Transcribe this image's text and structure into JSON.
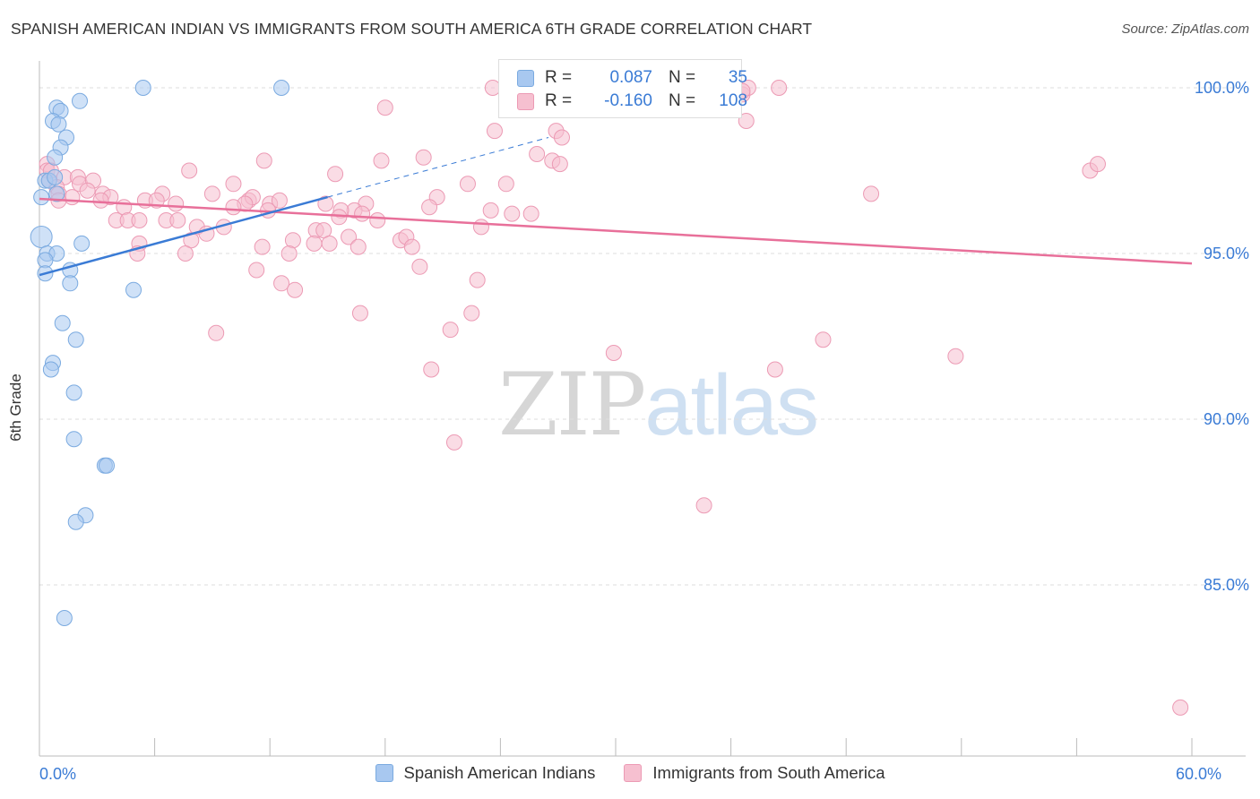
{
  "title": "SPANISH AMERICAN INDIAN VS IMMIGRANTS FROM SOUTH AMERICA 6TH GRADE CORRELATION CHART",
  "source": "Source: ZipAtlas.com",
  "watermark": {
    "zip": "ZIP",
    "atlas": "atlas"
  },
  "legend": {
    "blue": {
      "r_label": "R =",
      "r_value": "0.087",
      "n_label": "N =",
      "n_value": "35"
    },
    "pink": {
      "r_label": "R =",
      "r_value": "-0.160",
      "n_label": "N =",
      "n_value": "108"
    }
  },
  "colors": {
    "blue_fill": "#a8c8f0",
    "blue_stroke": "#7aaae0",
    "blue_line": "#3a7bd5",
    "pink_fill": "#f6c0d0",
    "pink_stroke": "#ec9ab4",
    "pink_line": "#e8709a",
    "tick_label": "#3a7bd5",
    "grid": "#dddddd"
  },
  "chart_data": {
    "type": "scatter",
    "xlabel": "",
    "ylabel": "6th Grade",
    "xlim": [
      0,
      60
    ],
    "ylim": [
      80.5,
      100.8
    ],
    "x_tick_labels": [
      {
        "value": 0,
        "label": "0.0%"
      },
      {
        "value": 60,
        "label": "60.0%"
      }
    ],
    "x_minor_ticks": [
      0,
      6,
      12,
      18,
      24,
      30,
      36,
      42,
      48,
      54,
      60
    ],
    "y_ticks": [
      {
        "value": 100,
        "label": "100.0%"
      },
      {
        "value": 95,
        "label": "95.0%"
      },
      {
        "value": 90,
        "label": "90.0%"
      },
      {
        "value": 85,
        "label": "85.0%"
      }
    ],
    "grid": true,
    "legend_position": "top-center",
    "series": [
      {
        "name": "Spanish American Indians",
        "color": "#a8c8f0",
        "trend": {
          "x": [
            0,
            15
          ],
          "y": [
            94.35,
            96.7
          ],
          "dashed_to": [
            26.5,
            98.5
          ]
        },
        "points": [
          [
            5.4,
            100.0
          ],
          [
            12.6,
            100.0
          ],
          [
            2.1,
            99.6
          ],
          [
            0.9,
            99.4
          ],
          [
            1.1,
            99.3
          ],
          [
            0.7,
            99.0
          ],
          [
            1.0,
            98.9
          ],
          [
            1.4,
            98.5
          ],
          [
            1.1,
            98.2
          ],
          [
            0.8,
            97.9
          ],
          [
            0.3,
            97.2
          ],
          [
            0.5,
            97.2
          ],
          [
            0.9,
            96.8
          ],
          [
            0.1,
            96.7
          ],
          [
            0.1,
            95.5
          ],
          [
            2.2,
            95.3
          ],
          [
            0.4,
            95.0
          ],
          [
            0.9,
            95.0
          ],
          [
            0.3,
            94.8
          ],
          [
            1.6,
            94.5
          ],
          [
            0.3,
            94.4
          ],
          [
            1.6,
            94.1
          ],
          [
            4.9,
            93.9
          ],
          [
            1.2,
            92.9
          ],
          [
            1.9,
            92.4
          ],
          [
            0.7,
            91.7
          ],
          [
            0.6,
            91.5
          ],
          [
            1.8,
            90.8
          ],
          [
            1.8,
            89.4
          ],
          [
            3.4,
            88.6
          ],
          [
            3.5,
            88.6
          ],
          [
            2.4,
            87.1
          ],
          [
            1.9,
            86.9
          ],
          [
            1.3,
            84.0
          ],
          [
            0.8,
            97.3
          ]
        ]
      },
      {
        "name": "Immigrants from South America",
        "color": "#f6c0d0",
        "trend": {
          "x": [
            0,
            60
          ],
          "y": [
            96.65,
            94.7
          ]
        },
        "points": [
          [
            23.6,
            100.0
          ],
          [
            36.6,
            99.8
          ],
          [
            38.5,
            100.0
          ],
          [
            36.9,
            100.0
          ],
          [
            36.6,
            99.9
          ],
          [
            36.8,
            99.0
          ],
          [
            30.2,
            99.5
          ],
          [
            18.0,
            99.4
          ],
          [
            23.7,
            98.7
          ],
          [
            26.9,
            98.7
          ],
          [
            27.2,
            98.5
          ],
          [
            25.9,
            98.0
          ],
          [
            20.0,
            97.9
          ],
          [
            26.7,
            97.8
          ],
          [
            17.8,
            97.8
          ],
          [
            11.7,
            97.8
          ],
          [
            27.1,
            97.7
          ],
          [
            0.4,
            97.7
          ],
          [
            0.4,
            97.5
          ],
          [
            0.6,
            97.5
          ],
          [
            1.3,
            97.3
          ],
          [
            2.0,
            97.3
          ],
          [
            7.8,
            97.5
          ],
          [
            15.4,
            97.4
          ],
          [
            0.5,
            97.2
          ],
          [
            0.9,
            97.0
          ],
          [
            2.1,
            97.1
          ],
          [
            2.8,
            97.2
          ],
          [
            10.1,
            97.1
          ],
          [
            22.3,
            97.1
          ],
          [
            24.3,
            97.1
          ],
          [
            1.0,
            96.8
          ],
          [
            1.7,
            96.7
          ],
          [
            2.5,
            96.9
          ],
          [
            3.3,
            96.8
          ],
          [
            3.7,
            96.7
          ],
          [
            6.4,
            96.8
          ],
          [
            9.0,
            96.8
          ],
          [
            10.9,
            96.6
          ],
          [
            11.1,
            96.7
          ],
          [
            10.7,
            96.5
          ],
          [
            20.7,
            96.7
          ],
          [
            10.1,
            96.4
          ],
          [
            1.0,
            96.6
          ],
          [
            3.2,
            96.6
          ],
          [
            4.4,
            96.4
          ],
          [
            5.5,
            96.6
          ],
          [
            6.1,
            96.6
          ],
          [
            7.1,
            96.5
          ],
          [
            12.0,
            96.5
          ],
          [
            12.5,
            96.6
          ],
          [
            14.9,
            96.5
          ],
          [
            20.3,
            96.4
          ],
          [
            17.0,
            96.5
          ],
          [
            16.4,
            96.3
          ],
          [
            11.9,
            96.3
          ],
          [
            15.7,
            96.3
          ],
          [
            16.8,
            96.2
          ],
          [
            4.0,
            96.0
          ],
          [
            4.6,
            96.0
          ],
          [
            5.2,
            96.0
          ],
          [
            6.6,
            96.0
          ],
          [
            7.2,
            96.0
          ],
          [
            15.6,
            96.1
          ],
          [
            17.6,
            96.0
          ],
          [
            23.5,
            96.3
          ],
          [
            24.6,
            96.2
          ],
          [
            25.6,
            96.2
          ],
          [
            8.2,
            95.8
          ],
          [
            9.6,
            95.8
          ],
          [
            14.4,
            95.7
          ],
          [
            14.8,
            95.7
          ],
          [
            23.0,
            95.8
          ],
          [
            8.7,
            95.6
          ],
          [
            16.1,
            95.5
          ],
          [
            18.8,
            95.4
          ],
          [
            19.1,
            95.5
          ],
          [
            13.2,
            95.4
          ],
          [
            7.9,
            95.4
          ],
          [
            14.3,
            95.3
          ],
          [
            15.1,
            95.3
          ],
          [
            16.6,
            95.2
          ],
          [
            19.4,
            95.2
          ],
          [
            5.2,
            95.3
          ],
          [
            11.6,
            95.2
          ],
          [
            13.0,
            95.0
          ],
          [
            7.6,
            95.0
          ],
          [
            5.1,
            95.0
          ],
          [
            19.8,
            94.6
          ],
          [
            11.3,
            94.5
          ],
          [
            12.6,
            94.1
          ],
          [
            13.3,
            93.9
          ],
          [
            22.8,
            94.2
          ],
          [
            16.7,
            93.2
          ],
          [
            22.5,
            93.2
          ],
          [
            21.4,
            92.7
          ],
          [
            9.2,
            92.6
          ],
          [
            29.9,
            92.0
          ],
          [
            40.8,
            92.4
          ],
          [
            47.7,
            91.9
          ],
          [
            20.4,
            91.5
          ],
          [
            38.3,
            91.5
          ],
          [
            21.6,
            89.3
          ],
          [
            34.6,
            87.4
          ],
          [
            43.3,
            96.8
          ],
          [
            54.7,
            97.5
          ],
          [
            55.1,
            97.7
          ],
          [
            59.4,
            81.3
          ]
        ]
      }
    ]
  }
}
